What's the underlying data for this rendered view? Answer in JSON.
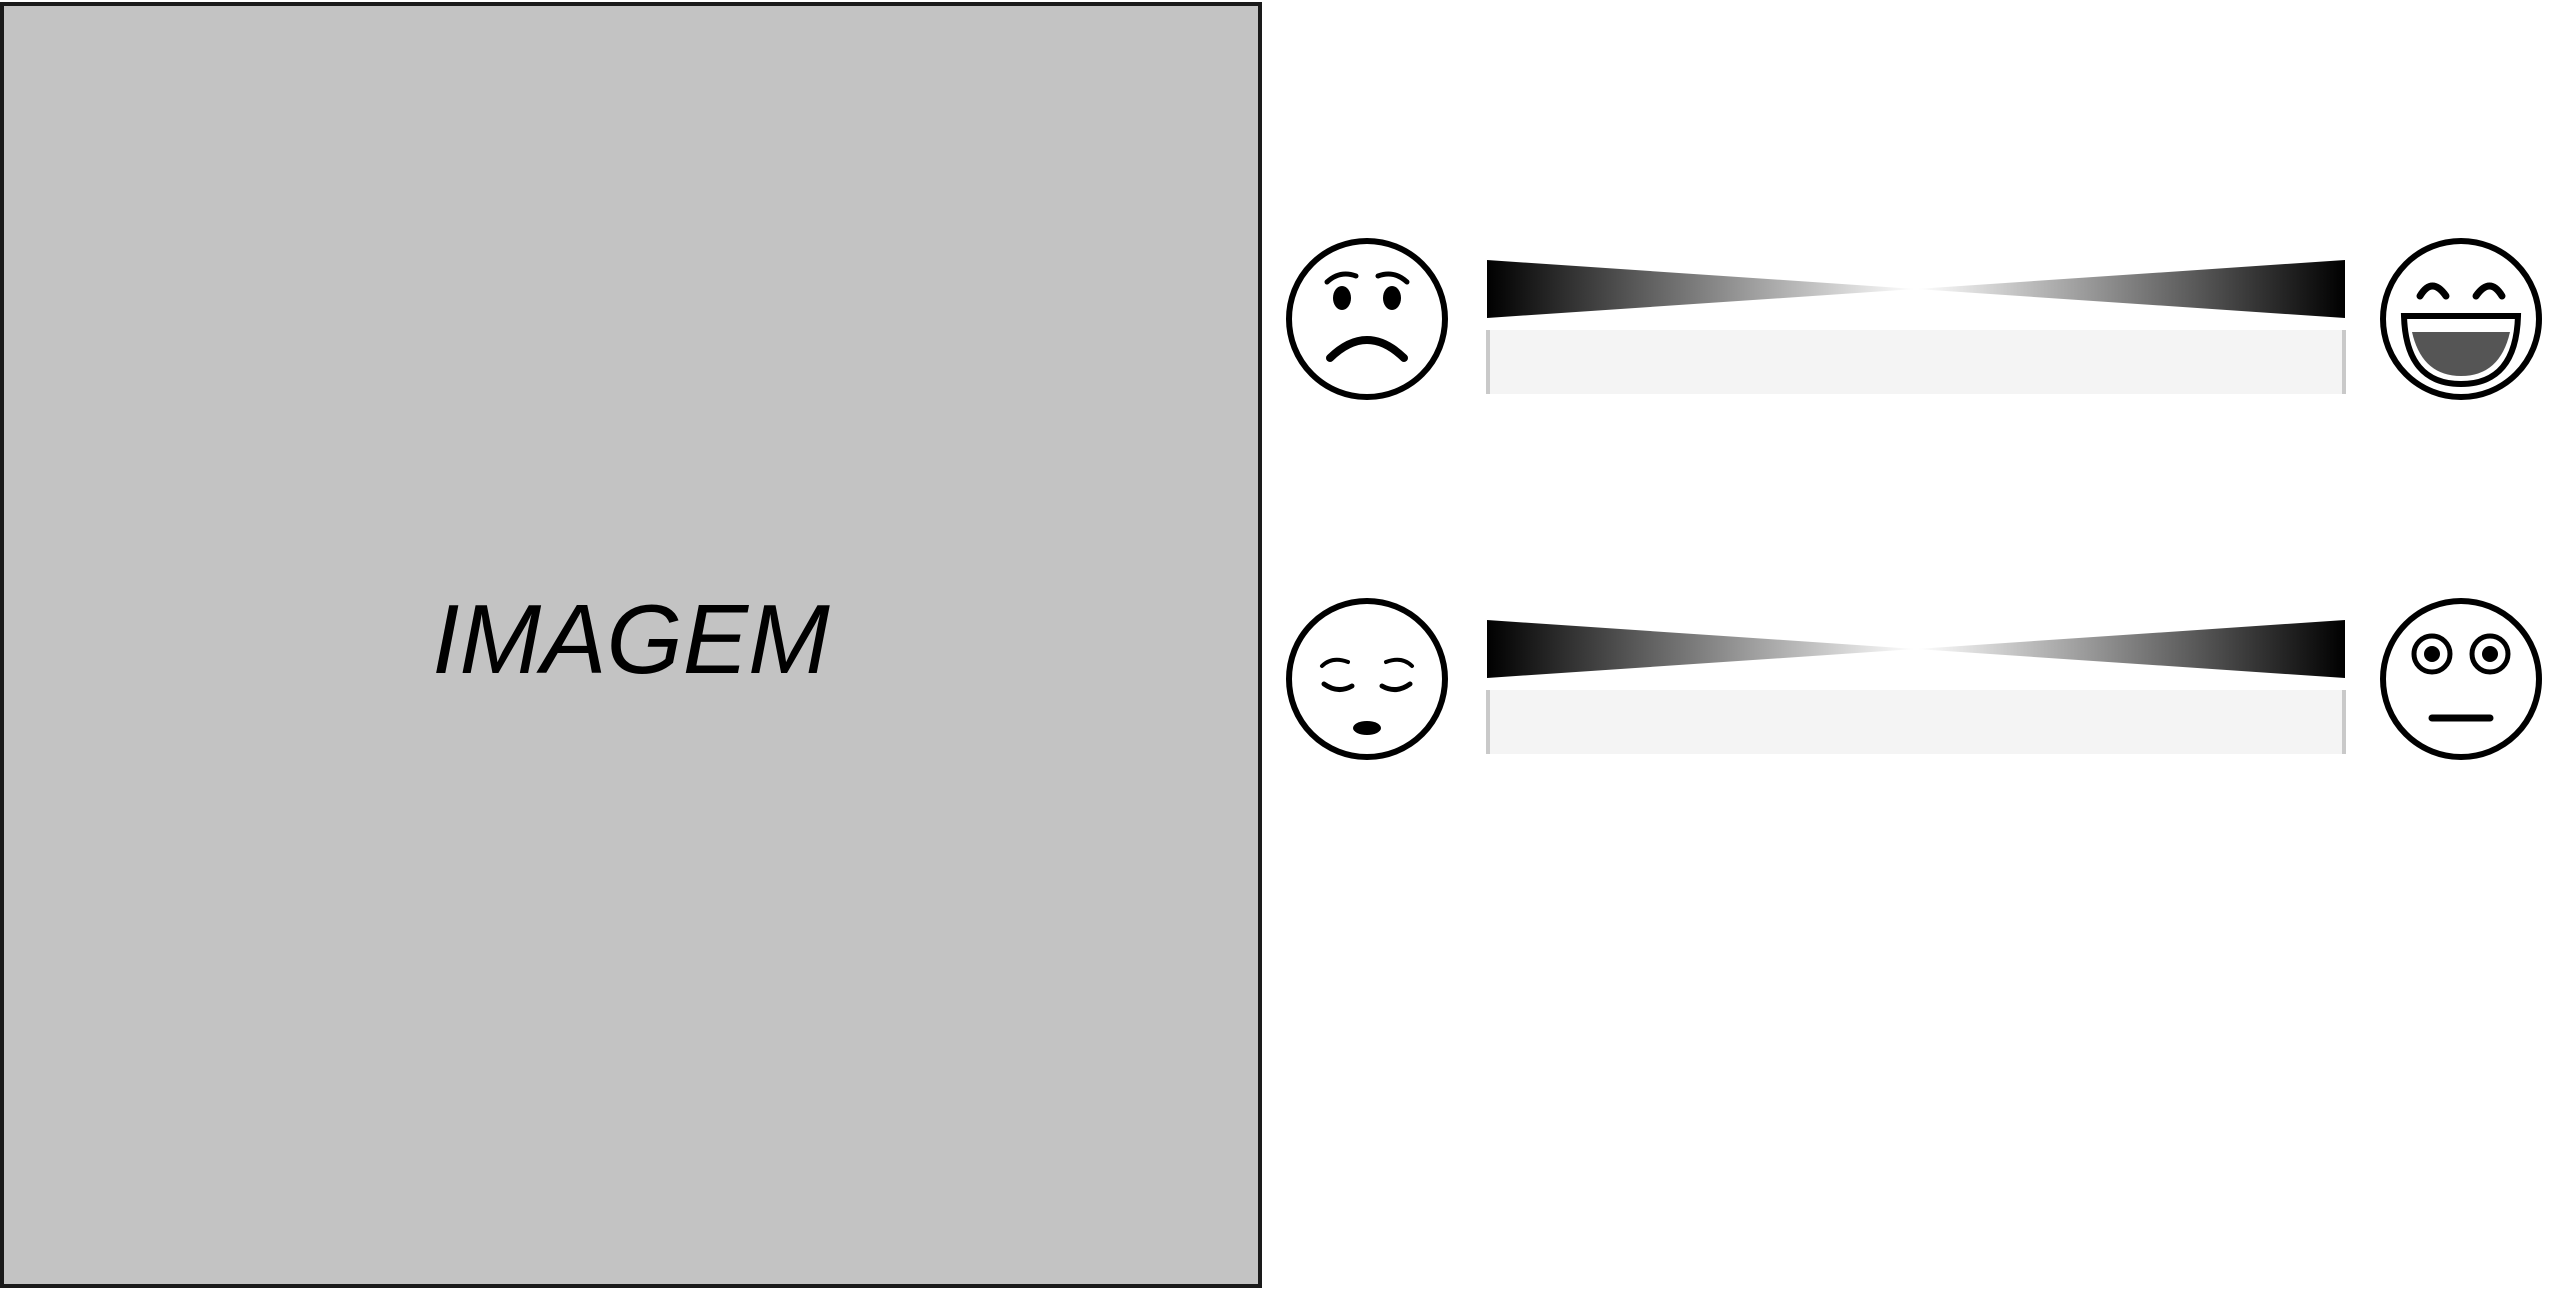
{
  "image_panel": {
    "label": "IMAGEM"
  },
  "scales": [
    {
      "left_face_icon": "sad-face-icon",
      "right_face_icon": "laughing-face-icon",
      "slider_value": null
    },
    {
      "left_face_icon": "sleepy-face-icon",
      "right_face_icon": "wide-eyed-neutral-face-icon",
      "slider_value": null
    }
  ],
  "colors": {
    "panel_background": "#c3c3c3",
    "panel_border": "#1a1a1a",
    "track_background": "#f4f4f4",
    "track_ends": "#c9c9c9",
    "gradient_dark": "#000000",
    "face_mouth_fill": "#555555"
  }
}
